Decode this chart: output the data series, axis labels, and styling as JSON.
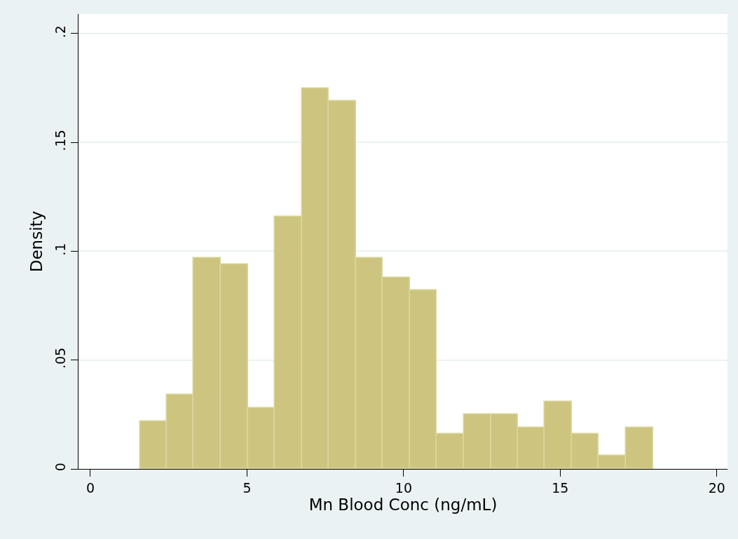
{
  "chart_data": {
    "type": "histogram",
    "xlabel": "Mn Blood Conc (ng/mL)",
    "ylabel": "Density",
    "bins": [
      1.58,
      2.44,
      3.3,
      4.17,
      5.03,
      5.89,
      6.75,
      7.61,
      8.48,
      9.34,
      10.2,
      11.06,
      11.92,
      12.79,
      13.65,
      14.51,
      15.37,
      16.23,
      17.1,
      17.96
    ],
    "values": [
      0.022,
      0.034,
      0.097,
      0.094,
      0.028,
      0.116,
      0.175,
      0.169,
      0.097,
      0.088,
      0.082,
      0.016,
      0.025,
      0.025,
      0.019,
      0.031,
      0.016,
      0.006,
      0.019
    ],
    "color": "#cdc57f",
    "xlim": [
      -0.38,
      20.34
    ],
    "ylim": [
      0,
      0.209
    ],
    "xticks": [
      0,
      5,
      10,
      15,
      20
    ],
    "yticks": [
      0,
      {
        "value": 0.05,
        "label": ".05"
      },
      {
        "value": 0.1,
        "label": ".1"
      },
      {
        "value": 0.15,
        "label": ".15"
      },
      {
        "value": 0.2,
        "label": ".2"
      }
    ],
    "grid": "y"
  }
}
